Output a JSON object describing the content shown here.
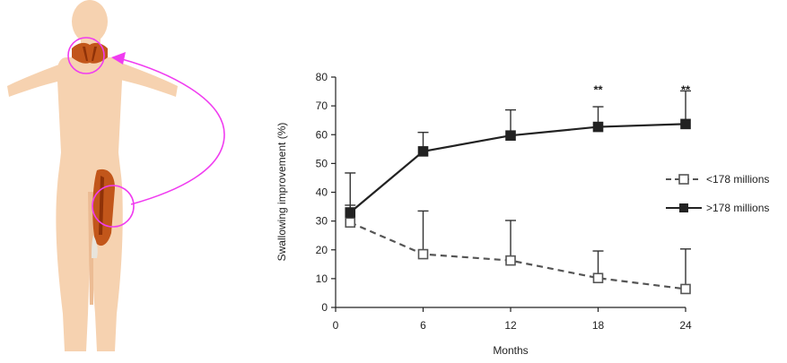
{
  "figure": {
    "diagram_colors": {
      "skin": "#f6d2b0",
      "skin_shadow": "#ecbc94",
      "muscle": "#c2561a",
      "muscle_dark": "#8f3208",
      "arrow": "#f03cf0"
    }
  },
  "chart_data": {
    "type": "line",
    "xlabel": "Months",
    "ylabel": "Swallowing improvement (%)",
    "x": [
      1,
      6,
      12,
      18,
      24
    ],
    "xticks": [
      0,
      6,
      12,
      18,
      24
    ],
    "yticks": [
      0,
      10,
      20,
      30,
      40,
      50,
      60,
      70,
      80
    ],
    "xlim": [
      0,
      24
    ],
    "ylim": [
      0,
      80
    ],
    "grid": false,
    "legend_position": "right",
    "series": [
      {
        "name": "<178 millions",
        "values": [
          29.5,
          18.5,
          16.3,
          10.2,
          6.4
        ],
        "error_upper": [
          35.5,
          33.5,
          30.2,
          19.6,
          20.3
        ],
        "marker": "open-square",
        "line_style": "dashed"
      },
      {
        "name": ">178 millions",
        "values": [
          33,
          54.2,
          59.7,
          62.7,
          63.7
        ],
        "error_upper": [
          46.7,
          60.8,
          68.6,
          69.7,
          75.2
        ],
        "marker": "filled-square",
        "line_style": "solid"
      }
    ],
    "annotations": [
      {
        "x": 18,
        "y": 75.5,
        "text": "**"
      },
      {
        "x": 24,
        "y": 75.5,
        "text": "**"
      }
    ]
  }
}
